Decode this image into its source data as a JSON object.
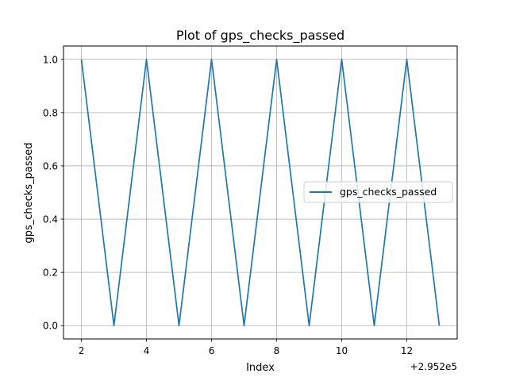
{
  "chart_data": {
    "type": "line",
    "title": "Plot of gps_checks_passed",
    "xlabel": "Index",
    "ylabel": "gps_checks_passed",
    "x_offset_label": "+2.952e5",
    "x": [
      2,
      3,
      4,
      5,
      6,
      7,
      8,
      9,
      10,
      11,
      12,
      13
    ],
    "xlim": [
      1.45,
      13.55
    ],
    "ylim": [
      -0.05,
      1.05
    ],
    "x_ticks": [
      2,
      4,
      6,
      8,
      10,
      12
    ],
    "x_tick_labels": [
      "2",
      "4",
      "6",
      "8",
      "10",
      "12"
    ],
    "y_ticks": [
      0.0,
      0.2,
      0.4,
      0.6,
      0.8,
      1.0
    ],
    "y_tick_labels": [
      "0.0",
      "0.2",
      "0.4",
      "0.6",
      "0.8",
      "1.0"
    ],
    "grid": true,
    "legend_position": "center-right",
    "series": [
      {
        "name": "gps_checks_passed",
        "color": "#1f77b4",
        "values": [
          1,
          0,
          1,
          0,
          1,
          0,
          1,
          0,
          1,
          0,
          1,
          0
        ]
      }
    ]
  }
}
